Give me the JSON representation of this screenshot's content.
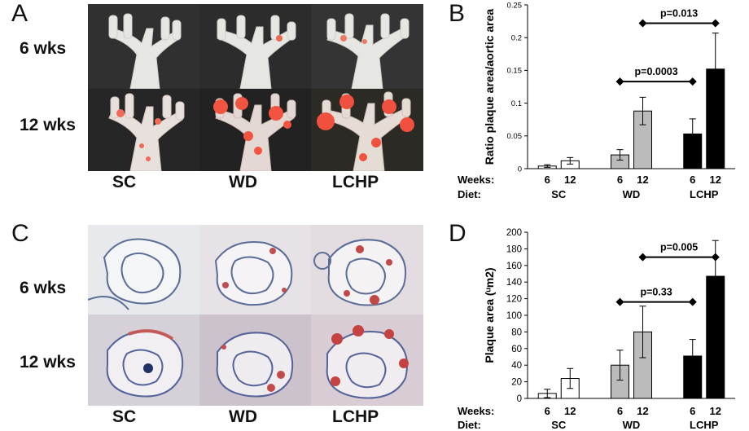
{
  "panels": {
    "A": {
      "letter": "A",
      "rows": [
        "6 wks",
        "12 wks"
      ],
      "diets": [
        "SC",
        "WD",
        "LCHP"
      ]
    },
    "B": {
      "letter": "B"
    },
    "C": {
      "letter": "C",
      "rows": [
        "6 wks",
        "12 wks"
      ],
      "diets": [
        "SC",
        "WD",
        "LCHP"
      ]
    },
    "D": {
      "letter": "D"
    }
  },
  "chart_data": [
    {
      "type": "bar",
      "panel": "B",
      "ylabel": "Ratio plaque area/aortic area",
      "ylim": [
        0,
        0.25
      ],
      "yticks": [
        "0",
        "0.05",
        "0.1",
        "0.15",
        "0.2",
        "0.25"
      ],
      "row_labels": {
        "weeks": "Weeks:",
        "diet": "Diet:"
      },
      "groups": [
        {
          "diet": "SC",
          "color": "#ffffff",
          "bars": [
            {
              "week": "6",
              "value": 0.004,
              "err": 0.002
            },
            {
              "week": "12",
              "value": 0.012,
              "err": 0.005
            }
          ]
        },
        {
          "diet": "WD",
          "color": "#bbbbbb",
          "bars": [
            {
              "week": "6",
              "value": 0.021,
              "err": 0.008
            },
            {
              "week": "12",
              "value": 0.088,
              "err": 0.021
            }
          ]
        },
        {
          "diet": "LCHP",
          "color": "#000000",
          "bars": [
            {
              "week": "6",
              "value": 0.053,
              "err": 0.023
            },
            {
              "week": "12",
              "value": 0.152,
              "err": 0.055
            }
          ]
        }
      ],
      "annotations": [
        {
          "text": "p=0.0003",
          "from": [
            1,
            0
          ],
          "to": [
            2,
            0
          ],
          "y": 0.133
        },
        {
          "text": "p=0.013",
          "from": [
            1,
            1
          ],
          "to": [
            2,
            1
          ],
          "y": 0.222
        }
      ]
    },
    {
      "type": "bar",
      "panel": "D",
      "ylabel": "Plaque area (ᵘm2)",
      "ylim": [
        0,
        200
      ],
      "yticks": [
        "0",
        "20",
        "40",
        "60",
        "80",
        "100",
        "120",
        "140",
        "160",
        "180",
        "200"
      ],
      "row_labels": {
        "weeks": "Weeks:",
        "diet": "Diet:"
      },
      "groups": [
        {
          "diet": "SC",
          "color": "#ffffff",
          "bars": [
            {
              "week": "6",
              "value": 6,
              "err": 5
            },
            {
              "week": "12",
              "value": 24,
              "err": 12
            }
          ]
        },
        {
          "diet": "WD",
          "color": "#bbbbbb",
          "bars": [
            {
              "week": "6",
              "value": 40,
              "err": 18
            },
            {
              "week": "12",
              "value": 80,
              "err": 31
            }
          ]
        },
        {
          "diet": "LCHP",
          "color": "#000000",
          "bars": [
            {
              "week": "6",
              "value": 51,
              "err": 20
            },
            {
              "week": "12",
              "value": 147,
              "err": 43
            }
          ]
        }
      ],
      "annotations": [
        {
          "text": "p=0.33",
          "from": [
            1,
            0
          ],
          "to": [
            2,
            0
          ],
          "y": 116
        },
        {
          "text": "p=0.005",
          "from": [
            1,
            1
          ],
          "to": [
            2,
            1
          ],
          "y": 170
        }
      ]
    }
  ]
}
